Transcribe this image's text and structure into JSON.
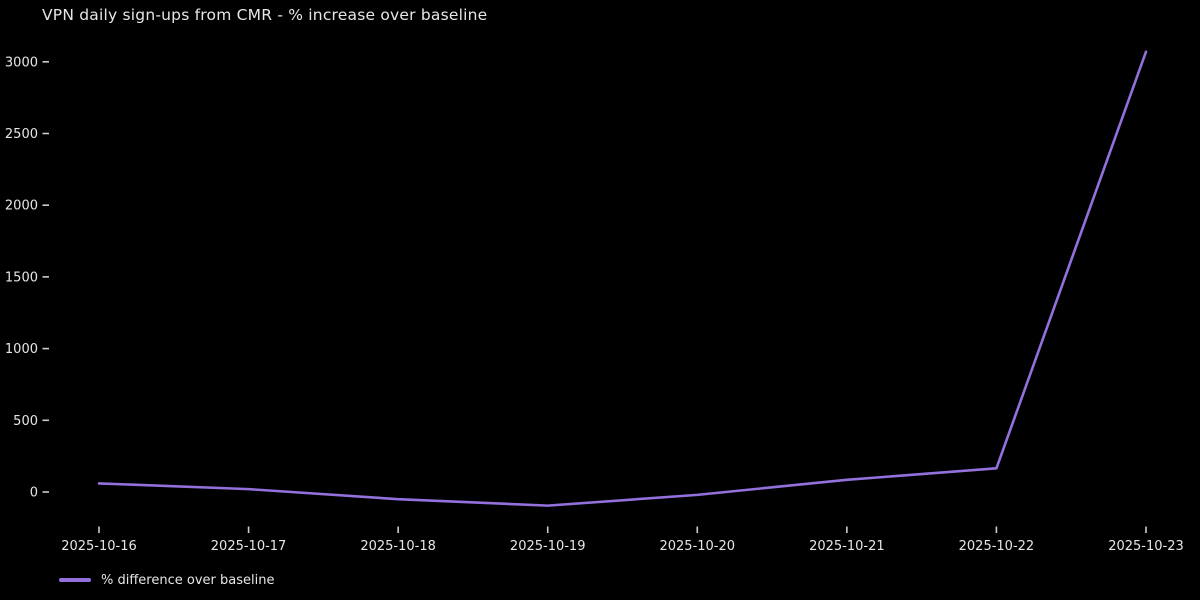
{
  "chart_data": {
    "type": "line",
    "title": "VPN daily sign-ups from CMR - % increase over baseline",
    "x": [
      "2025-10-16",
      "2025-10-17",
      "2025-10-18",
      "2025-10-19",
      "2025-10-20",
      "2025-10-21",
      "2025-10-22",
      "2025-10-23"
    ],
    "series": [
      {
        "name": "% difference over baseline",
        "color": "#9370db",
        "values": [
          60,
          20,
          -50,
          -95,
          -20,
          85,
          165,
          3070
        ]
      }
    ],
    "xlabel": "",
    "ylabel": "",
    "yticks": [
      0,
      500,
      1000,
      1500,
      2000,
      2500,
      3000
    ],
    "ylim": [
      -250,
      3200
    ],
    "grid": false,
    "legend_position": "below-axis-left",
    "colors": {
      "background": "#000000",
      "text": "#e6e6e6",
      "tick": "#cccccc"
    }
  }
}
